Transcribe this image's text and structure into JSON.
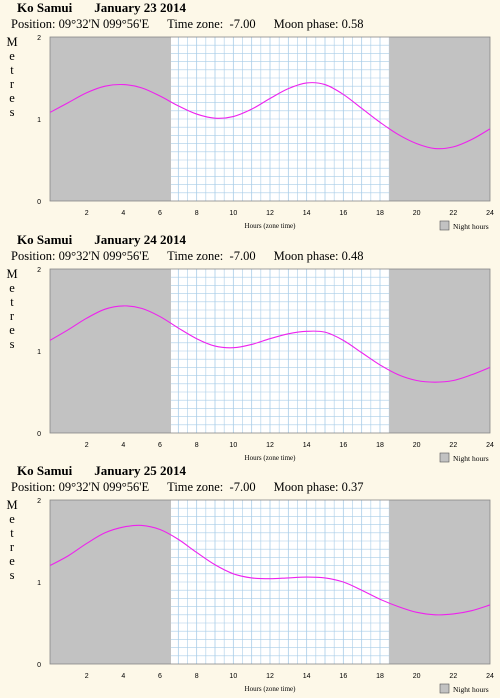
{
  "ylabel": "Metres",
  "xlabel": "Hours (zone time)",
  "legend_label": "Night hours",
  "colors": {
    "background": "#fdf8e8",
    "plot_day": "#ffffff",
    "night": "#c2c2c2",
    "grid": "#a9cde8",
    "curve": "#ee22ee"
  },
  "panels": [
    {
      "location": "Ko Samui",
      "date": "January 23 2014",
      "position_label": "Position:",
      "position": "09°32'N 099°56'E",
      "tz_label": "Time zone:",
      "tz": "-7.00",
      "moon_label": "Moon phase:",
      "moon": "0.58"
    },
    {
      "location": "Ko Samui",
      "date": "January 24 2014",
      "position_label": "Position:",
      "position": "09°32'N 099°56'E",
      "tz_label": "Time zone:",
      "tz": "-7.00",
      "moon_label": "Moon phase:",
      "moon": "0.48"
    },
    {
      "location": "Ko Samui",
      "date": "January 25 2014",
      "position_label": "Position:",
      "position": "09°32'N 099°56'E",
      "tz_label": "Time zone:",
      "tz": "-7.00",
      "moon_label": "Moon phase:",
      "moon": "0.37"
    }
  ],
  "chart_data": [
    {
      "type": "line",
      "title": "Ko Samui January 23 2014",
      "xlabel": "Hours (zone time)",
      "ylabel": "Metres",
      "xlim": [
        0,
        24
      ],
      "ylim": [
        0,
        2
      ],
      "x_ticks": [
        "2",
        "4",
        "6",
        "8",
        "10",
        "12",
        "14",
        "16",
        "18",
        "20",
        "22",
        "24"
      ],
      "y_ticks": [
        "0",
        "1",
        "2"
      ],
      "night_hours": [
        [
          0,
          6.6
        ],
        [
          18.5,
          24
        ]
      ],
      "grid": true,
      "legend": "bottom-right",
      "series": [
        {
          "x": [
            0,
            1,
            2,
            3,
            4,
            5,
            6,
            7,
            8,
            9,
            10,
            11,
            12,
            13,
            14,
            15,
            16,
            17,
            18,
            19,
            20,
            21,
            22,
            23,
            24
          ],
          "y": [
            1.08,
            1.2,
            1.32,
            1.4,
            1.42,
            1.38,
            1.28,
            1.16,
            1.06,
            1.01,
            1.03,
            1.12,
            1.25,
            1.37,
            1.44,
            1.42,
            1.3,
            1.13,
            0.96,
            0.81,
            0.7,
            0.64,
            0.66,
            0.75,
            0.88
          ]
        }
      ]
    },
    {
      "type": "line",
      "title": "Ko Samui January 24 2014",
      "xlabel": "Hours (zone time)",
      "ylabel": "Metres",
      "xlim": [
        0,
        24
      ],
      "ylim": [
        0,
        2
      ],
      "x_ticks": [
        "2",
        "4",
        "6",
        "8",
        "10",
        "12",
        "14",
        "16",
        "18",
        "20",
        "22",
        "24"
      ],
      "y_ticks": [
        "0",
        "1",
        "2"
      ],
      "night_hours": [
        [
          0,
          6.6
        ],
        [
          18.5,
          24
        ]
      ],
      "grid": true,
      "legend": "bottom-right",
      "series": [
        {
          "x": [
            0,
            1,
            2,
            3,
            4,
            5,
            6,
            7,
            8,
            9,
            10,
            11,
            12,
            13,
            14,
            15,
            16,
            17,
            18,
            19,
            20,
            21,
            22,
            23,
            24
          ],
          "y": [
            1.13,
            1.26,
            1.4,
            1.51,
            1.55,
            1.52,
            1.42,
            1.28,
            1.15,
            1.06,
            1.04,
            1.08,
            1.15,
            1.21,
            1.24,
            1.23,
            1.13,
            0.98,
            0.83,
            0.71,
            0.64,
            0.62,
            0.64,
            0.71,
            0.8
          ]
        }
      ]
    },
    {
      "type": "line",
      "title": "Ko Samui January 25 2014",
      "xlabel": "Hours (zone time)",
      "ylabel": "Metres",
      "xlim": [
        0,
        24
      ],
      "ylim": [
        0,
        2
      ],
      "x_ticks": [
        "2",
        "4",
        "6",
        "8",
        "10",
        "12",
        "14",
        "16",
        "18",
        "20",
        "22",
        "24"
      ],
      "y_ticks": [
        "0",
        "1",
        "2"
      ],
      "night_hours": [
        [
          0,
          6.6
        ],
        [
          18.5,
          24
        ]
      ],
      "grid": true,
      "legend": "bottom-right",
      "series": [
        {
          "x": [
            0,
            1,
            2,
            3,
            4,
            5,
            6,
            7,
            8,
            9,
            10,
            11,
            12,
            13,
            14,
            15,
            16,
            17,
            18,
            19,
            20,
            21,
            22,
            23,
            24
          ],
          "y": [
            1.2,
            1.32,
            1.47,
            1.6,
            1.67,
            1.69,
            1.64,
            1.52,
            1.36,
            1.21,
            1.1,
            1.05,
            1.04,
            1.05,
            1.06,
            1.05,
            1.0,
            0.9,
            0.79,
            0.7,
            0.63,
            0.6,
            0.61,
            0.65,
            0.72
          ]
        }
      ]
    }
  ]
}
